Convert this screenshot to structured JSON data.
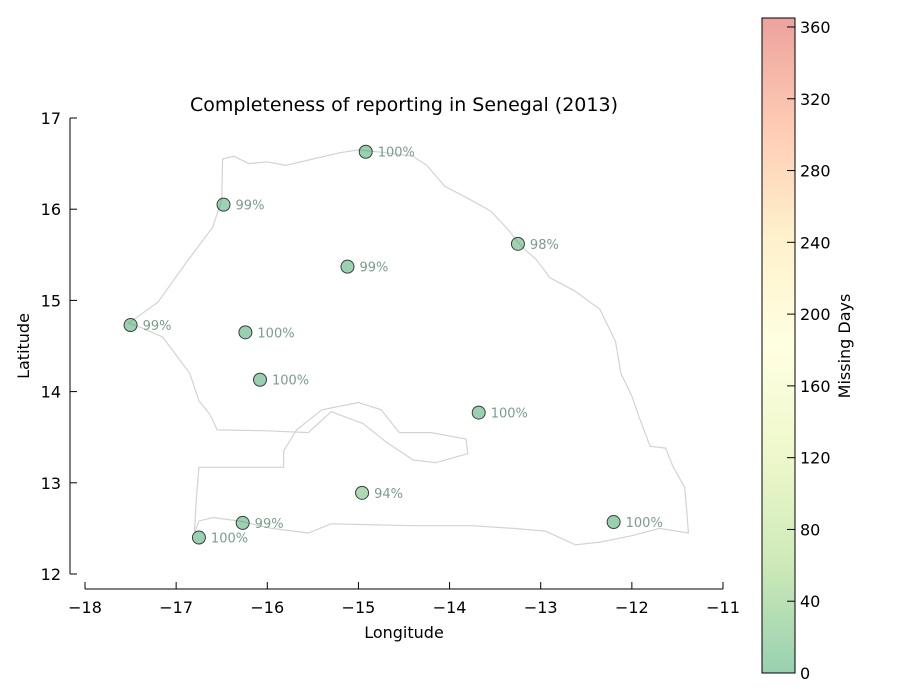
{
  "chart_data": {
    "type": "scatter",
    "title": "Completeness of reporting in Senegal (2013)",
    "xlabel": "Longitude",
    "ylabel": "Latitude",
    "xlim": [
      -18,
      -11
    ],
    "ylim": [
      12,
      17
    ],
    "xticks": [
      "−18",
      "−17",
      "−16",
      "−15",
      "−14",
      "−13",
      "−12",
      "−11"
    ],
    "yticks": [
      "12",
      "13",
      "14",
      "15",
      "16",
      "17"
    ],
    "grid": false,
    "points": [
      {
        "lon": -14.92,
        "lat": 16.63,
        "label": "100%",
        "missing_days": 0
      },
      {
        "lon": -16.48,
        "lat": 16.05,
        "label": "99%",
        "missing_days": 4
      },
      {
        "lon": -13.25,
        "lat": 15.62,
        "label": "98%",
        "missing_days": 7
      },
      {
        "lon": -15.12,
        "lat": 15.37,
        "label": "99%",
        "missing_days": 4
      },
      {
        "lon": -17.5,
        "lat": 14.73,
        "label": "99%",
        "missing_days": 4
      },
      {
        "lon": -16.24,
        "lat": 14.65,
        "label": "100%",
        "missing_days": 0
      },
      {
        "lon": -16.08,
        "lat": 14.13,
        "label": "100%",
        "missing_days": 0
      },
      {
        "lon": -13.68,
        "lat": 13.77,
        "label": "100%",
        "missing_days": 0
      },
      {
        "lon": -14.96,
        "lat": 12.89,
        "label": "94%",
        "missing_days": 22
      },
      {
        "lon": -16.27,
        "lat": 12.56,
        "label": "99%",
        "missing_days": 4
      },
      {
        "lon": -12.2,
        "lat": 12.57,
        "label": "100%",
        "missing_days": 0
      },
      {
        "lon": -16.75,
        "lat": 12.4,
        "label": "100%",
        "missing_days": 0
      }
    ],
    "colorbar": {
      "label": "Missing Days",
      "min": 0,
      "max": 365,
      "ticks": [
        "0",
        "40",
        "80",
        "120",
        "160",
        "200",
        "240",
        "280",
        "320",
        "360"
      ],
      "colors": [
        "#1a9850",
        "#91cf60",
        "#d9ef8b",
        "#ffffbf",
        "#fee08b",
        "#fc8d59",
        "#d73027"
      ],
      "opacity": 0.45
    },
    "outline_color": "#d3d3d3",
    "label_color": "#7a9e8b",
    "senegal_outline": [
      [
        -16.49,
        16.55
      ],
      [
        -16.37,
        16.58
      ],
      [
        -16.2,
        16.5
      ],
      [
        -16.0,
        16.52
      ],
      [
        -15.8,
        16.48
      ],
      [
        -15.5,
        16.55
      ],
      [
        -15.2,
        16.62
      ],
      [
        -15.0,
        16.65
      ],
      [
        -14.7,
        16.62
      ],
      [
        -14.4,
        16.58
      ],
      [
        -14.25,
        16.48
      ],
      [
        -14.05,
        16.25
      ],
      [
        -13.8,
        16.12
      ],
      [
        -13.55,
        15.98
      ],
      [
        -13.38,
        15.8
      ],
      [
        -13.2,
        15.58
      ],
      [
        -13.05,
        15.45
      ],
      [
        -12.9,
        15.25
      ],
      [
        -12.62,
        15.1
      ],
      [
        -12.35,
        14.9
      ],
      [
        -12.18,
        14.55
      ],
      [
        -12.12,
        14.2
      ],
      [
        -12.0,
        13.95
      ],
      [
        -11.92,
        13.72
      ],
      [
        -11.8,
        13.4
      ],
      [
        -11.63,
        13.38
      ],
      [
        -11.55,
        13.18
      ],
      [
        -11.42,
        12.95
      ],
      [
        -11.4,
        12.72
      ],
      [
        -11.38,
        12.45
      ],
      [
        -11.7,
        12.5
      ],
      [
        -12.0,
        12.42
      ],
      [
        -12.35,
        12.35
      ],
      [
        -12.62,
        12.32
      ],
      [
        -12.95,
        12.47
      ],
      [
        -13.3,
        12.5
      ],
      [
        -13.75,
        12.53
      ],
      [
        -14.4,
        12.53
      ],
      [
        -15.3,
        12.55
      ],
      [
        -15.55,
        12.45
      ],
      [
        -15.95,
        12.5
      ],
      [
        -16.3,
        12.58
      ],
      [
        -16.6,
        12.62
      ],
      [
        -16.75,
        12.58
      ],
      [
        -16.8,
        12.45
      ],
      [
        -16.78,
        12.8
      ],
      [
        -16.75,
        13.17
      ],
      [
        -15.82,
        13.17
      ],
      [
        -15.82,
        13.35
      ],
      [
        -15.68,
        13.58
      ],
      [
        -15.4,
        13.8
      ],
      [
        -15.0,
        13.88
      ],
      [
        -14.75,
        13.8
      ],
      [
        -14.55,
        13.55
      ],
      [
        -14.2,
        13.55
      ],
      [
        -13.82,
        13.48
      ],
      [
        -13.8,
        13.32
      ],
      [
        -14.15,
        13.22
      ],
      [
        -14.4,
        13.25
      ],
      [
        -14.7,
        13.45
      ],
      [
        -14.95,
        13.65
      ],
      [
        -15.3,
        13.78
      ],
      [
        -15.55,
        13.55
      ],
      [
        -16.0,
        13.57
      ],
      [
        -16.55,
        13.58
      ],
      [
        -16.63,
        13.75
      ],
      [
        -16.75,
        13.9
      ],
      [
        -16.85,
        14.2
      ],
      [
        -17.15,
        14.6
      ],
      [
        -17.38,
        14.7
      ],
      [
        -17.52,
        14.75
      ],
      [
        -17.2,
        14.98
      ],
      [
        -16.9,
        15.4
      ],
      [
        -16.6,
        15.8
      ],
      [
        -16.5,
        16.1
      ],
      [
        -16.49,
        16.55
      ]
    ]
  }
}
